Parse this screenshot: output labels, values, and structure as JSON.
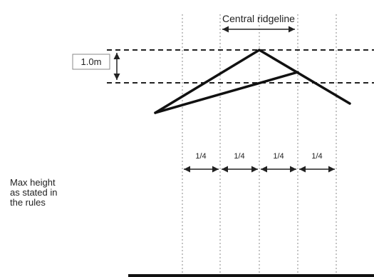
{
  "diagram": {
    "ridgeline_label": "Central ridgeline",
    "height_label": "1.0m",
    "quarter_labels": [
      "1/4",
      "1/4",
      "1/4",
      "1/4"
    ],
    "side_note": [
      "Max height",
      "as stated in",
      "the rules"
    ]
  }
}
